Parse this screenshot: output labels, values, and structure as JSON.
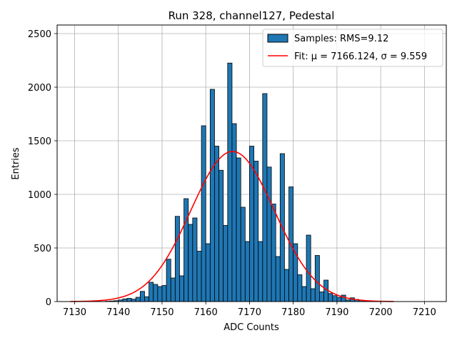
{
  "chart_data": {
    "type": "bar",
    "title": "Run 328, channel127, Pedestal",
    "xlabel": "ADC Counts",
    "ylabel": "Entries",
    "xlim": [
      7126,
      7215
    ],
    "ylim": [
      0,
      2580
    ],
    "xticks": [
      7130,
      7140,
      7150,
      7160,
      7170,
      7180,
      7190,
      7200,
      7210
    ],
    "yticks": [
      0,
      500,
      1000,
      1500,
      2000,
      2500
    ],
    "grid": true,
    "legend_position": "top-right",
    "bar_color": "#1f77b4",
    "fit_color": "#ff0000",
    "histogram": {
      "name": "Samples: RMS=9.12",
      "bin_starts": [
        7137,
        7138,
        7139,
        7140,
        7141,
        7142,
        7143,
        7144,
        7145,
        7146,
        7147,
        7148,
        7149,
        7150,
        7151,
        7152,
        7153,
        7154,
        7155,
        7156,
        7157,
        7158,
        7159,
        7160,
        7161,
        7162,
        7163,
        7164,
        7165,
        7166,
        7167,
        7168,
        7169,
        7170,
        7171,
        7172,
        7173,
        7174,
        7175,
        7176,
        7177,
        7178,
        7179,
        7180,
        7181,
        7182,
        7183,
        7184,
        7185,
        7186,
        7187,
        7188,
        7189,
        7190,
        7191,
        7192,
        7193,
        7194,
        7195,
        7196
      ],
      "bin_width": 1,
      "values": [
        3,
        5,
        8,
        15,
        25,
        30,
        22,
        40,
        95,
        45,
        180,
        160,
        140,
        150,
        395,
        220,
        795,
        240,
        960,
        720,
        780,
        470,
        1640,
        540,
        1980,
        1450,
        1225,
        710,
        2225,
        1660,
        1340,
        880,
        560,
        1450,
        1310,
        560,
        1940,
        1255,
        910,
        420,
        1380,
        300,
        1070,
        540,
        250,
        140,
        620,
        120,
        430,
        90,
        200,
        75,
        55,
        40,
        60,
        15,
        35,
        20,
        10,
        5
      ]
    },
    "fit": {
      "name": "Fit: μ = 7166.124, σ = 9.559",
      "mu": 7166.124,
      "sigma": 9.559,
      "amplitude": 1400,
      "x_range": [
        7129,
        7203
      ]
    }
  }
}
